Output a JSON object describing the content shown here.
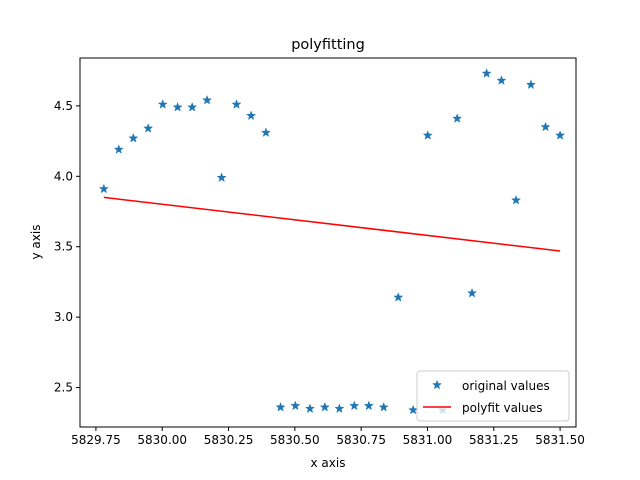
{
  "chart_data": {
    "type": "scatter",
    "title": "polyfitting",
    "xlabel": "x axis",
    "ylabel": "y axis",
    "xlim": [
      5829.69,
      5831.56
    ],
    "ylim": [
      2.22,
      4.84
    ],
    "xticks": [
      5829.75,
      5830.0,
      5830.25,
      5830.5,
      5830.75,
      5831.0,
      5831.25,
      5831.5
    ],
    "xtick_labels": [
      "5829.75",
      "5830.00",
      "5830.25",
      "5830.50",
      "5830.75",
      "5831.00",
      "5831.25",
      "5831.50"
    ],
    "yticks": [
      2.5,
      3.0,
      3.5,
      4.0,
      4.5
    ],
    "ytick_labels": [
      "2.5",
      "3.0",
      "3.5",
      "4.0",
      "4.5"
    ],
    "grid": false,
    "legend_position": "lower-right",
    "series": [
      {
        "name": "original values",
        "kind": "scatter",
        "marker": "star",
        "color": "#1f77b4",
        "x": [
          5829.78,
          5829.836,
          5829.891,
          5829.947,
          5830.002,
          5830.058,
          5830.113,
          5830.169,
          5830.224,
          5830.28,
          5830.335,
          5830.391,
          5830.446,
          5830.502,
          5830.557,
          5830.613,
          5830.668,
          5830.724,
          5830.779,
          5830.835,
          5830.89,
          5830.946,
          5831.001,
          5831.057,
          5831.112,
          5831.168,
          5831.223,
          5831.279,
          5831.334,
          5831.39,
          5831.445,
          5831.5
        ],
        "y": [
          3.91,
          4.19,
          4.27,
          4.34,
          4.51,
          4.49,
          4.49,
          4.54,
          3.99,
          4.51,
          4.43,
          4.31,
          2.36,
          2.37,
          2.35,
          2.36,
          2.35,
          2.37,
          2.37,
          2.36,
          3.14,
          2.34,
          4.29,
          2.34,
          4.41,
          3.17,
          4.73,
          4.68,
          3.83,
          4.65,
          4.35,
          4.29
        ]
      },
      {
        "name": "polyfit values",
        "kind": "line",
        "color": "#ff0000",
        "x": [
          5829.78,
          5831.5
        ],
        "y": [
          3.85,
          3.47
        ]
      }
    ]
  }
}
